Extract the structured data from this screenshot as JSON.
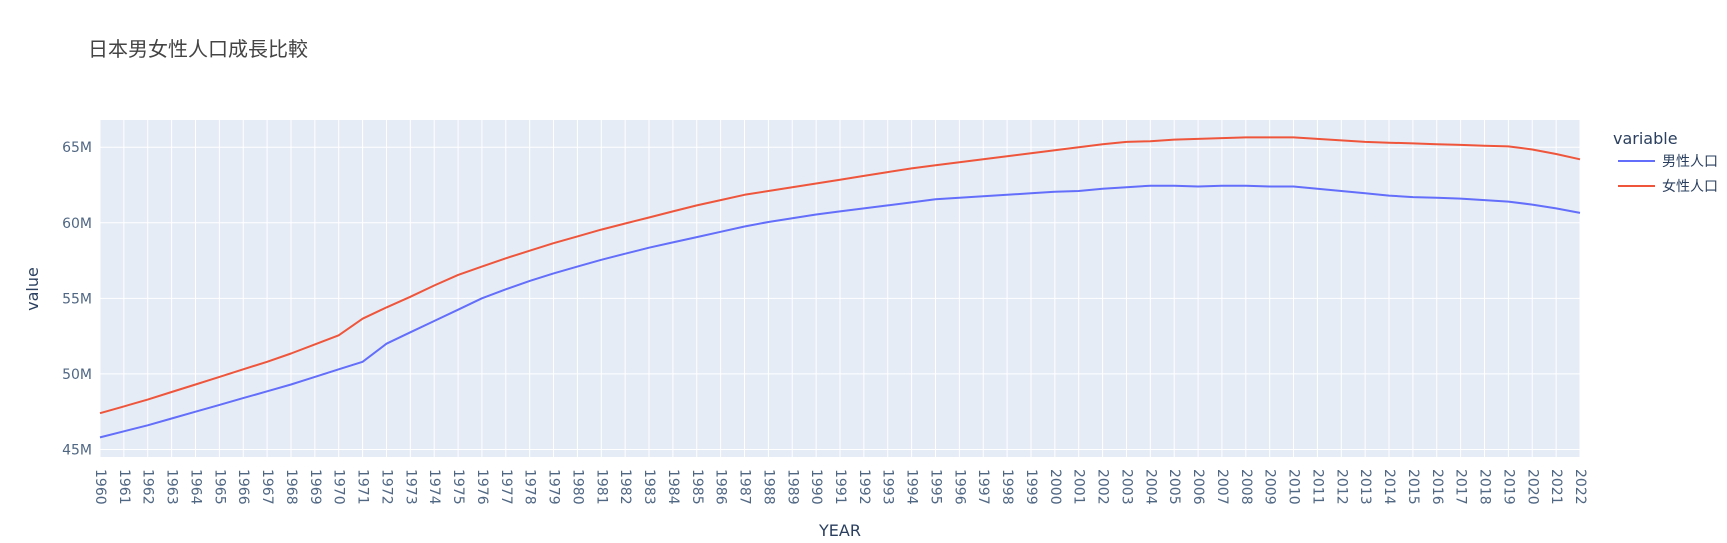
{
  "chart_data": {
    "type": "line",
    "title": "日本男女性人口成長比較",
    "xlabel": "YEAR",
    "ylabel": "value",
    "ylim": [
      44500000,
      66800000
    ],
    "yticks": [
      45000000,
      50000000,
      55000000,
      60000000,
      65000000
    ],
    "ytick_labels": [
      "45M",
      "50M",
      "55M",
      "60M",
      "65M"
    ],
    "x": [
      "1960",
      "1961",
      "1962",
      "1963",
      "1964",
      "1965",
      "1966",
      "1967",
      "1968",
      "1969",
      "1970",
      "1971",
      "1972",
      "1973",
      "1974",
      "1975",
      "1976",
      "1977",
      "1978",
      "1979",
      "1980",
      "1981",
      "1982",
      "1983",
      "1984",
      "1985",
      "1986",
      "1987",
      "1988",
      "1989",
      "1990",
      "1991",
      "1992",
      "1993",
      "1994",
      "1995",
      "1996",
      "1997",
      "1998",
      "1999",
      "2000",
      "2001",
      "2002",
      "2003",
      "2004",
      "2005",
      "2006",
      "2007",
      "2008",
      "2009",
      "2010",
      "2011",
      "2012",
      "2013",
      "2014",
      "2015",
      "2016",
      "2017",
      "2018",
      "2019",
      "2020",
      "2021",
      "2022"
    ],
    "legend_title": "variable",
    "legend_position": "right",
    "grid": true,
    "colors": {
      "plot_bg": "#E5ECF6",
      "grid": "#ffffff"
    },
    "series": [
      {
        "name": "男性人口",
        "color": "#636EFA",
        "values": [
          45800000,
          46200000,
          46600000,
          47050000,
          47500000,
          47950000,
          48400000,
          48850000,
          49300000,
          49800000,
          50300000,
          50800000,
          52000000,
          52750000,
          53500000,
          54250000,
          55000000,
          55600000,
          56150000,
          56650000,
          57100000,
          57550000,
          57950000,
          58350000,
          58700000,
          59050000,
          59400000,
          59750000,
          60050000,
          60300000,
          60550000,
          60750000,
          60950000,
          61150000,
          61350000,
          61550000,
          61650000,
          61750000,
          61850000,
          61950000,
          62050000,
          62100000,
          62250000,
          62350000,
          62450000,
          62450000,
          62400000,
          62450000,
          62450000,
          62400000,
          62400000,
          62250000,
          62100000,
          61950000,
          61800000,
          61700000,
          61650000,
          61600000,
          61500000,
          61400000,
          61200000,
          60950000,
          60650000
        ]
      },
      {
        "name": "女性人口",
        "color": "#EF553B",
        "values": [
          47400000,
          47850000,
          48300000,
          48800000,
          49300000,
          49800000,
          50300000,
          50800000,
          51350000,
          51950000,
          52550000,
          53650000,
          54400000,
          55100000,
          55850000,
          56550000,
          57100000,
          57650000,
          58150000,
          58650000,
          59100000,
          59550000,
          59950000,
          60350000,
          60750000,
          61150000,
          61500000,
          61850000,
          62100000,
          62350000,
          62600000,
          62850000,
          63100000,
          63350000,
          63600000,
          63800000,
          64000000,
          64200000,
          64400000,
          64600000,
          64800000,
          65000000,
          65200000,
          65350000,
          65400000,
          65500000,
          65550000,
          65600000,
          65650000,
          65650000,
          65650000,
          65550000,
          65450000,
          65350000,
          65300000,
          65250000,
          65200000,
          65150000,
          65100000,
          65050000,
          64850000,
          64550000,
          64200000
        ]
      }
    ]
  }
}
